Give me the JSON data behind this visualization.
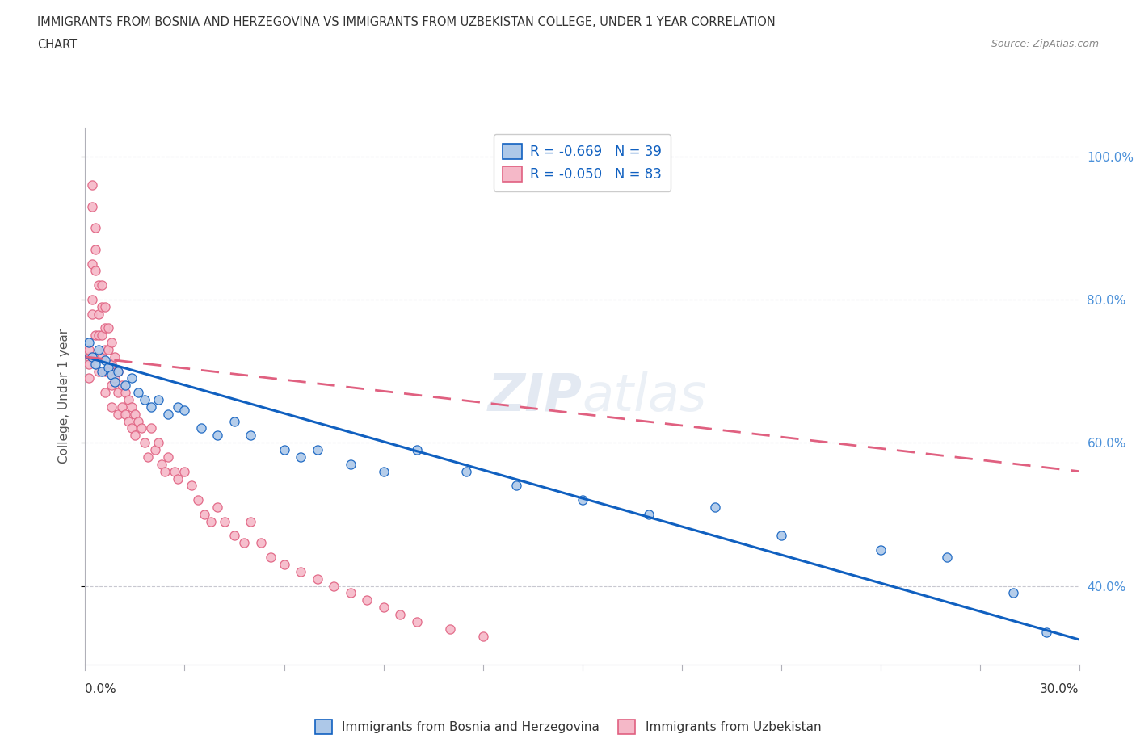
{
  "title_line1": "IMMIGRANTS FROM BOSNIA AND HERZEGOVINA VS IMMIGRANTS FROM UZBEKISTAN COLLEGE, UNDER 1 YEAR CORRELATION",
  "title_line2": "CHART",
  "source": "Source: ZipAtlas.com",
  "ylabel": "College, Under 1 year",
  "xlim": [
    0.0,
    0.3
  ],
  "ylim": [
    0.29,
    1.04
  ],
  "yticks": [
    0.4,
    0.6,
    0.8,
    1.0
  ],
  "ytick_labels": [
    "40.0%",
    "60.0%",
    "80.0%",
    "100.0%"
  ],
  "color_bosnia": "#adc8e8",
  "color_uzbekistan": "#f5b8c8",
  "color_line_bosnia": "#1060c0",
  "color_line_uzbekistan": "#e06080",
  "watermark": "ZIPAtlas",
  "bosnia_x": [
    0.001,
    0.002,
    0.003,
    0.004,
    0.005,
    0.006,
    0.007,
    0.008,
    0.009,
    0.01,
    0.012,
    0.014,
    0.016,
    0.018,
    0.02,
    0.022,
    0.025,
    0.028,
    0.03,
    0.035,
    0.04,
    0.045,
    0.05,
    0.06,
    0.065,
    0.07,
    0.08,
    0.09,
    0.1,
    0.115,
    0.13,
    0.15,
    0.17,
    0.19,
    0.21,
    0.24,
    0.26,
    0.28,
    0.29
  ],
  "bosnia_y": [
    0.74,
    0.72,
    0.71,
    0.73,
    0.7,
    0.715,
    0.705,
    0.695,
    0.685,
    0.7,
    0.68,
    0.69,
    0.67,
    0.66,
    0.65,
    0.66,
    0.64,
    0.65,
    0.645,
    0.62,
    0.61,
    0.63,
    0.61,
    0.59,
    0.58,
    0.59,
    0.57,
    0.56,
    0.59,
    0.56,
    0.54,
    0.52,
    0.5,
    0.51,
    0.47,
    0.45,
    0.44,
    0.39,
    0.335
  ],
  "uzbekistan_x": [
    0.001,
    0.001,
    0.001,
    0.001,
    0.002,
    0.002,
    0.002,
    0.002,
    0.002,
    0.003,
    0.003,
    0.003,
    0.003,
    0.003,
    0.004,
    0.004,
    0.004,
    0.004,
    0.005,
    0.005,
    0.005,
    0.005,
    0.006,
    0.006,
    0.006,
    0.006,
    0.006,
    0.007,
    0.007,
    0.007,
    0.008,
    0.008,
    0.008,
    0.008,
    0.009,
    0.009,
    0.01,
    0.01,
    0.01,
    0.011,
    0.011,
    0.012,
    0.012,
    0.013,
    0.013,
    0.014,
    0.014,
    0.015,
    0.015,
    0.016,
    0.017,
    0.018,
    0.019,
    0.02,
    0.021,
    0.022,
    0.023,
    0.024,
    0.025,
    0.027,
    0.028,
    0.03,
    0.032,
    0.034,
    0.036,
    0.038,
    0.04,
    0.042,
    0.045,
    0.048,
    0.05,
    0.053,
    0.056,
    0.06,
    0.065,
    0.07,
    0.075,
    0.08,
    0.085,
    0.09,
    0.095,
    0.1,
    0.11,
    0.12
  ],
  "uzbekistan_y": [
    0.72,
    0.73,
    0.69,
    0.71,
    0.96,
    0.93,
    0.85,
    0.8,
    0.78,
    0.9,
    0.87,
    0.84,
    0.75,
    0.72,
    0.82,
    0.78,
    0.75,
    0.7,
    0.82,
    0.79,
    0.75,
    0.72,
    0.79,
    0.76,
    0.73,
    0.7,
    0.67,
    0.76,
    0.73,
    0.7,
    0.74,
    0.71,
    0.68,
    0.65,
    0.72,
    0.69,
    0.7,
    0.67,
    0.64,
    0.68,
    0.65,
    0.67,
    0.64,
    0.66,
    0.63,
    0.65,
    0.62,
    0.64,
    0.61,
    0.63,
    0.62,
    0.6,
    0.58,
    0.62,
    0.59,
    0.6,
    0.57,
    0.56,
    0.58,
    0.56,
    0.55,
    0.56,
    0.54,
    0.52,
    0.5,
    0.49,
    0.51,
    0.49,
    0.47,
    0.46,
    0.49,
    0.46,
    0.44,
    0.43,
    0.42,
    0.41,
    0.4,
    0.39,
    0.38,
    0.37,
    0.36,
    0.35,
    0.34,
    0.33
  ],
  "trend_bosnia_x0": 0.0,
  "trend_bosnia_y0": 0.72,
  "trend_bosnia_x1": 0.3,
  "trend_bosnia_y1": 0.325,
  "trend_uzb_x0": 0.0,
  "trend_uzb_y0": 0.72,
  "trend_uzb_x1": 0.3,
  "trend_uzb_y1": 0.56
}
